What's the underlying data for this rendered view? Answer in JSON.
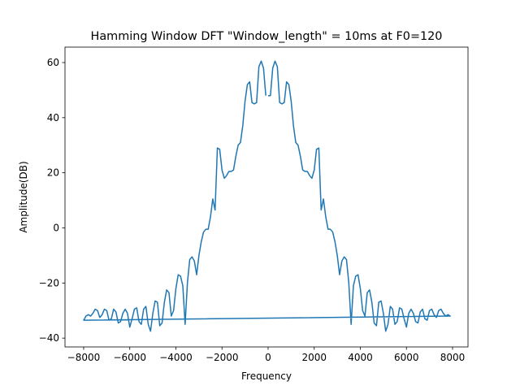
{
  "chart_data": {
    "type": "line",
    "title": "Hamming Window DFT \"Window_length\" = 10ms at F0=120",
    "x_label": "Frequency",
    "y_label": "Amplitude(DB)",
    "color": "#1f77b4",
    "x": [
      0,
      100,
      200,
      300,
      400,
      500,
      600,
      700,
      800,
      900,
      1000,
      1100,
      1200,
      1300,
      1400,
      1500,
      1600,
      1700,
      1800,
      1900,
      2000,
      2100,
      2200,
      2300,
      2400,
      2500,
      2600,
      2700,
      2800,
      2900,
      3000,
      3100,
      3200,
      3300,
      3400,
      3500,
      3600,
      3700,
      3800,
      3900,
      4000,
      4100,
      4200,
      4300,
      4400,
      4500,
      4600,
      4700,
      4800,
      4900,
      5000,
      5100,
      5200,
      5300,
      5400,
      5500,
      5600,
      5700,
      5800,
      5900,
      6000,
      6100,
      6200,
      6300,
      6400,
      6500,
      6600,
      6700,
      6800,
      6900,
      7000,
      7100,
      7200,
      7300,
      7400,
      7500,
      7600,
      7700,
      7800,
      7900,
      -8000,
      -7900,
      -7800,
      -7700,
      -7600,
      -7500,
      -7400,
      -7300,
      -7200,
      -7100,
      -7000,
      -6900,
      -6800,
      -6700,
      -6600,
      -6500,
      -6400,
      -6300,
      -6200,
      -6100,
      -6000,
      -5900,
      -5800,
      -5700,
      -5600,
      -5500,
      -5400,
      -5300,
      -5200,
      -5100,
      -5000,
      -4900,
      -4800,
      -4700,
      -4600,
      -4500,
      -4400,
      -4300,
      -4200,
      -4100,
      -4000,
      -3900,
      -3800,
      -3700,
      -3600,
      -3500,
      -3400,
      -3300,
      -3200,
      -3100,
      -3000,
      -2900,
      -2800,
      -2700,
      -2600,
      -2500,
      -2400,
      -2300,
      -2200,
      -2100,
      -2000,
      -1900,
      -1800,
      -1700,
      -1600,
      -1500,
      -1400,
      -1300,
      -1200,
      -1100,
      -1000,
      -900,
      -800,
      -700,
      -600,
      -500,
      -400,
      -300,
      -200,
      -100
    ],
    "values": [
      48,
      48,
      58,
      60.5,
      58.5,
      45.5,
      45,
      45.5,
      53,
      52,
      46,
      37,
      31,
      30,
      26,
      21,
      20.5,
      20.5,
      19,
      18,
      21,
      28.5,
      29,
      6.5,
      10.5,
      4,
      -0.5,
      -0.5,
      -1.5,
      -5,
      -10,
      -17,
      -12,
      -10.5,
      -11.5,
      -20,
      -35,
      -21,
      -17.5,
      -17,
      -22,
      -30,
      -32,
      -23.5,
      -22.5,
      -27,
      -34.5,
      -35.5,
      -27,
      -26.5,
      -31,
      -37.5,
      -35,
      -28.5,
      -29.5,
      -35,
      -34,
      -29,
      -29.5,
      -33,
      -36,
      -31,
      -29.5,
      -31,
      -34,
      -34.5,
      -30.5,
      -29.5,
      -33,
      -33.5,
      -30,
      -29.5,
      -31.5,
      -32.5,
      -30,
      -29.5,
      -31,
      -32,
      -31.5,
      -32,
      -33.5,
      -32,
      -31.5,
      -32,
      -31,
      -29.5,
      -30,
      -32.5,
      -31.5,
      -29.5,
      -30,
      -33.5,
      -33,
      -29.5,
      -30.5,
      -34.5,
      -34,
      -31,
      -29.5,
      -31,
      -36,
      -33,
      -29.5,
      -29,
      -34,
      -35,
      -29.5,
      -28.5,
      -35,
      -37.5,
      -31,
      -26.5,
      -27,
      -35.5,
      -34.5,
      -27,
      -22.5,
      -23.5,
      -32,
      -30,
      -22,
      -17,
      -17.5,
      -21,
      -35,
      -20,
      -11.5,
      -10.5,
      -12,
      -17,
      -10,
      -5,
      -1.5,
      -0.5,
      -0.5,
      4,
      10.5,
      6.5,
      29,
      28.5,
      21,
      18,
      19,
      20.5,
      20.5,
      21,
      26,
      30,
      31,
      37,
      46,
      52,
      53,
      45.5,
      45,
      45.5,
      58.5,
      60.5,
      58,
      48
    ],
    "xlim": [
      -8810,
      8670
    ],
    "ylim": [
      -43.2,
      65.6
    ],
    "xticks": [
      {
        "value": -8000,
        "label": "−8000"
      },
      {
        "value": -6000,
        "label": "−6000"
      },
      {
        "value": -4000,
        "label": "−4000"
      },
      {
        "value": -2000,
        "label": "−2000"
      },
      0,
      2000,
      4000,
      6000,
      8000
    ],
    "yticks": [
      {
        "value": -40,
        "label": "−40"
      },
      {
        "value": -20,
        "label": "−20"
      },
      0,
      20,
      40,
      60
    ]
  }
}
